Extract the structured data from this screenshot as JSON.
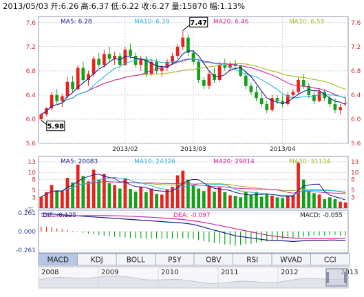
{
  "header": {
    "date": "2013/05/03",
    "open_label": "开:",
    "open": "6.26",
    "high_label": "高:",
    "high": "6.37",
    "low_label": "低:",
    "low": "6.22",
    "close_label": "收:",
    "close": "6.27",
    "volume_label": "量:",
    "volume": "15870",
    "change_label": "幅:",
    "change": "1.13%"
  },
  "colors": {
    "up": "#e8231e",
    "down": "#12a21a",
    "ma5": "#1a1a8c",
    "ma10": "#27b4d8",
    "ma20": "#d6239a",
    "ma30": "#a6b81e",
    "grid": "#c9ccd6",
    "frame": "#8d95ad",
    "axis_text": "#d2292f",
    "tab_active": "#b6c7e8"
  },
  "chart_data": [
    {
      "type": "candlestick",
      "title": "",
      "y_ticks": [
        5.6,
        6.0,
        6.4,
        6.8,
        7.2,
        7.6
      ],
      "ylim": [
        5.6,
        7.7
      ],
      "x_ticks": [
        "2013/02",
        "2013/03",
        "2013/04"
      ],
      "grid": true,
      "legend": [
        {
          "name": "MA5",
          "value": "6.28"
        },
        {
          "name": "MA10",
          "value": "6.39"
        },
        {
          "name": "MA20",
          "value": "6.46"
        },
        {
          "name": "MA30",
          "value": "6.59"
        }
      ],
      "annotations": [
        {
          "label": "7.47",
          "kind": "high"
        },
        {
          "label": "5.98",
          "kind": "low"
        }
      ],
      "ohlc": [
        [
          6.0,
          6.1,
          5.98,
          6.08
        ],
        [
          6.08,
          6.2,
          6.05,
          6.18
        ],
        [
          6.18,
          6.45,
          6.15,
          6.4
        ],
        [
          6.4,
          6.5,
          6.25,
          6.3
        ],
        [
          6.3,
          6.42,
          6.2,
          6.38
        ],
        [
          6.38,
          6.7,
          6.35,
          6.62
        ],
        [
          6.62,
          6.72,
          6.45,
          6.5
        ],
        [
          6.5,
          6.9,
          6.48,
          6.85
        ],
        [
          6.85,
          6.95,
          6.6,
          6.65
        ],
        [
          6.65,
          6.8,
          6.55,
          6.75
        ],
        [
          6.75,
          7.05,
          6.7,
          7.0
        ],
        [
          7.0,
          7.1,
          6.85,
          6.9
        ],
        [
          6.9,
          7.15,
          6.85,
          7.08
        ],
        [
          7.08,
          7.2,
          6.95,
          7.0
        ],
        [
          7.0,
          7.12,
          6.9,
          7.05
        ],
        [
          7.05,
          7.1,
          6.85,
          6.9
        ],
        [
          6.9,
          7.2,
          6.88,
          7.15
        ],
        [
          7.15,
          7.25,
          7.0,
          7.05
        ],
        [
          7.05,
          7.1,
          6.85,
          6.9
        ],
        [
          6.9,
          7.05,
          6.8,
          7.0
        ],
        [
          7.0,
          7.05,
          6.7,
          6.75
        ],
        [
          6.75,
          7.0,
          6.72,
          6.95
        ],
        [
          6.95,
          7.0,
          6.75,
          6.8
        ],
        [
          6.8,
          6.9,
          6.7,
          6.85
        ],
        [
          6.85,
          7.0,
          6.8,
          6.95
        ],
        [
          6.95,
          7.1,
          6.9,
          7.05
        ],
        [
          7.05,
          7.25,
          7.0,
          7.2
        ],
        [
          7.2,
          7.47,
          7.15,
          7.35
        ],
        [
          7.35,
          7.4,
          7.05,
          7.1
        ],
        [
          7.1,
          7.15,
          6.9,
          6.95
        ],
        [
          6.95,
          7.0,
          6.6,
          6.65
        ],
        [
          6.65,
          6.7,
          6.5,
          6.55
        ],
        [
          6.55,
          6.8,
          6.5,
          6.75
        ],
        [
          6.75,
          6.85,
          6.6,
          6.65
        ],
        [
          6.65,
          6.95,
          6.62,
          6.9
        ],
        [
          6.9,
          7.0,
          6.8,
          6.85
        ],
        [
          6.85,
          6.95,
          6.8,
          6.92
        ],
        [
          6.92,
          6.98,
          6.85,
          6.88
        ],
        [
          6.88,
          6.9,
          6.7,
          6.72
        ],
        [
          6.72,
          6.8,
          6.5,
          6.55
        ],
        [
          6.55,
          6.6,
          6.4,
          6.45
        ],
        [
          6.45,
          6.55,
          6.3,
          6.35
        ],
        [
          6.35,
          6.45,
          6.2,
          6.25
        ],
        [
          6.25,
          6.3,
          6.1,
          6.15
        ],
        [
          6.15,
          6.4,
          6.12,
          6.35
        ],
        [
          6.35,
          6.4,
          6.25,
          6.3
        ],
        [
          6.3,
          6.4,
          6.2,
          6.25
        ],
        [
          6.25,
          6.45,
          6.22,
          6.4
        ],
        [
          6.4,
          6.5,
          6.35,
          6.45
        ],
        [
          6.45,
          6.7,
          6.4,
          6.65
        ],
        [
          6.65,
          6.75,
          6.5,
          6.55
        ],
        [
          6.55,
          6.6,
          6.35,
          6.4
        ],
        [
          6.4,
          6.45,
          6.25,
          6.3
        ],
        [
          6.3,
          6.5,
          6.28,
          6.45
        ],
        [
          6.45,
          6.5,
          6.3,
          6.35
        ],
        [
          6.35,
          6.4,
          6.2,
          6.25
        ],
        [
          6.25,
          6.35,
          6.1,
          6.15
        ],
        [
          6.15,
          6.25,
          6.08,
          6.2
        ],
        [
          6.26,
          6.37,
          6.22,
          6.27
        ]
      ],
      "x_tick_index": [
        16,
        29,
        46
      ]
    },
    {
      "type": "bar",
      "title": "",
      "unit_label": "x万",
      "y_ticks": [
        3,
        5,
        8,
        10,
        13
      ],
      "ylim": [
        0,
        14.5
      ],
      "legend": [
        {
          "name": "MA5",
          "value": "20083"
        },
        {
          "name": "MA10",
          "value": "24326"
        },
        {
          "name": "MA20",
          "value": "29814"
        },
        {
          "name": "MA30",
          "value": "31134"
        }
      ],
      "values": [
        3.2,
        4.5,
        6.5,
        5.0,
        4.8,
        8.5,
        7.2,
        12.2,
        9.0,
        7.5,
        10.8,
        8.0,
        9.6,
        7.0,
        6.5,
        5.5,
        8.2,
        5.4,
        4.6,
        6.0,
        4.5,
        5.5,
        4.0,
        3.8,
        5.2,
        6.0,
        9.2,
        10.5,
        8.0,
        6.5,
        5.5,
        4.8,
        6.2,
        4.6,
        5.8,
        4.5,
        3.6,
        3.4,
        3.0,
        4.5,
        3.8,
        4.5,
        3.2,
        4.0,
        3.5,
        3.0,
        2.8,
        3.3,
        3.6,
        12.8,
        8.0,
        4.8,
        4.2,
        3.8,
        2.5,
        3.0,
        2.5,
        1.8,
        1.6
      ]
    },
    {
      "type": "line",
      "title": "",
      "indicator": "MACD",
      "y_ticks": [
        "0.261",
        "0.000",
        "-0.261"
      ],
      "ylim": [
        -0.3,
        0.3
      ],
      "legend": [
        {
          "name": "DIF",
          "value": "-0.125"
        },
        {
          "name": "DEA",
          "value": "-0.097"
        },
        {
          "name": "MACD",
          "value": "-0.055"
        }
      ],
      "dif": [
        0.25,
        0.25,
        0.245,
        0.24,
        0.235,
        0.23,
        0.225,
        0.22,
        0.215,
        0.21,
        0.205,
        0.2,
        0.195,
        0.19,
        0.185,
        0.18,
        0.175,
        0.17,
        0.165,
        0.16,
        0.155,
        0.15,
        0.145,
        0.14,
        0.135,
        0.13,
        0.125,
        0.12,
        0.11,
        0.1,
        0.08,
        0.06,
        0.04,
        0.02,
        0.0,
        -0.02,
        -0.04,
        -0.06,
        -0.07,
        -0.08,
        -0.09,
        -0.1,
        -0.11,
        -0.12,
        -0.125,
        -0.13,
        -0.13,
        -0.135,
        -0.14,
        -0.135,
        -0.13,
        -0.13,
        -0.125,
        -0.125,
        -0.125,
        -0.12,
        -0.12,
        -0.125,
        -0.125
      ],
      "dea": [
        0.215,
        0.216,
        0.217,
        0.218,
        0.219,
        0.22,
        0.221,
        0.222,
        0.223,
        0.224,
        0.225,
        0.225,
        0.224,
        0.223,
        0.222,
        0.22,
        0.218,
        0.215,
        0.212,
        0.208,
        0.204,
        0.2,
        0.195,
        0.19,
        0.185,
        0.18,
        0.175,
        0.168,
        0.16,
        0.15,
        0.14,
        0.128,
        0.114,
        0.1,
        0.085,
        0.07,
        0.055,
        0.04,
        0.025,
        0.01,
        -0.005,
        -0.02,
        -0.035,
        -0.05,
        -0.06,
        -0.07,
        -0.078,
        -0.085,
        -0.09,
        -0.093,
        -0.095,
        -0.096,
        -0.097,
        -0.097,
        -0.097,
        -0.097,
        -0.097,
        -0.097,
        -0.097
      ]
    }
  ],
  "tabs": [
    "MACD",
    "KDJ",
    "BOLL",
    "PSY",
    "OBV",
    "RSI",
    "WVAD",
    "CCI"
  ],
  "active_tab": "MACD",
  "timeline": {
    "years": [
      "2008",
      "2009",
      "2010",
      "2011",
      "2012",
      "2013"
    ]
  }
}
